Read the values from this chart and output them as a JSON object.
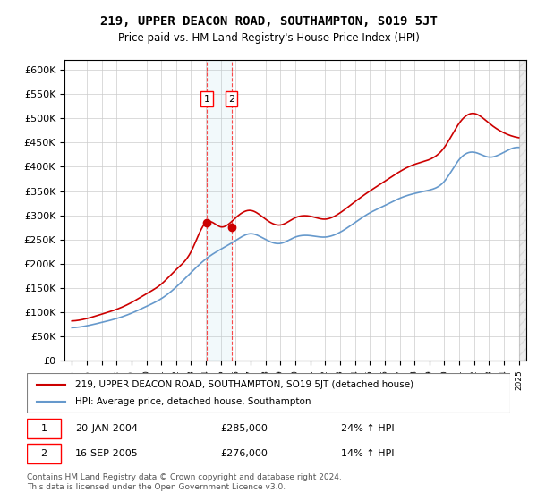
{
  "title": "219, UPPER DEACON ROAD, SOUTHAMPTON, SO19 5JT",
  "subtitle": "Price paid vs. HM Land Registry's House Price Index (HPI)",
  "legend_line1": "219, UPPER DEACON ROAD, SOUTHAMPTON, SO19 5JT (detached house)",
  "legend_line2": "HPI: Average price, detached house, Southampton",
  "transaction1_label": "1",
  "transaction1_date": "20-JAN-2004",
  "transaction1_price": "£285,000",
  "transaction1_hpi": "24% ↑ HPI",
  "transaction2_label": "2",
  "transaction2_date": "16-SEP-2005",
  "transaction2_price": "£276,000",
  "transaction2_hpi": "14% ↑ HPI",
  "footer": "Contains HM Land Registry data © Crown copyright and database right 2024.\nThis data is licensed under the Open Government Licence v3.0.",
  "line_color_red": "#cc0000",
  "line_color_blue": "#6699cc",
  "background_color": "#ffffff",
  "grid_color": "#cccccc",
  "ylim_min": 0,
  "ylim_max": 620000,
  "yticks": [
    0,
    50000,
    100000,
    150000,
    200000,
    250000,
    300000,
    350000,
    400000,
    450000,
    500000,
    550000,
    600000
  ],
  "transaction1_year": 2004.05,
  "transaction2_year": 2005.71,
  "transaction1_value": 285000,
  "transaction2_value": 276000,
  "hpi_years": [
    1995,
    1996,
    1997,
    1998,
    1999,
    2000,
    2001,
    2002,
    2003,
    2004,
    2005,
    2006,
    2007,
    2008,
    2009,
    2010,
    2011,
    2012,
    2013,
    2014,
    2015,
    2016,
    2017,
    2018,
    2019,
    2020,
    2021,
    2022,
    2023,
    2024,
    2025
  ],
  "hpi_values": [
    68000,
    72000,
    79000,
    87000,
    98000,
    112000,
    128000,
    152000,
    182000,
    210000,
    230000,
    248000,
    262000,
    250000,
    242000,
    255000,
    258000,
    255000,
    265000,
    285000,
    305000,
    320000,
    335000,
    345000,
    352000,
    370000,
    415000,
    430000,
    420000,
    430000,
    440000
  ],
  "price_years": [
    1995,
    1996,
    1997,
    1998,
    1999,
    2000,
    2001,
    2002,
    2003,
    2004,
    2005,
    2006,
    2007,
    2008,
    2009,
    2010,
    2011,
    2012,
    2013,
    2014,
    2015,
    2016,
    2017,
    2018,
    2019,
    2020,
    2021,
    2022,
    2023,
    2024,
    2025
  ],
  "price_values": [
    82000,
    87000,
    96000,
    106000,
    120000,
    138000,
    158000,
    188000,
    225000,
    285000,
    276000,
    295000,
    310000,
    292000,
    280000,
    295000,
    298000,
    292000,
    305000,
    328000,
    350000,
    370000,
    390000,
    405000,
    415000,
    440000,
    490000,
    510000,
    490000,
    470000,
    460000
  ]
}
